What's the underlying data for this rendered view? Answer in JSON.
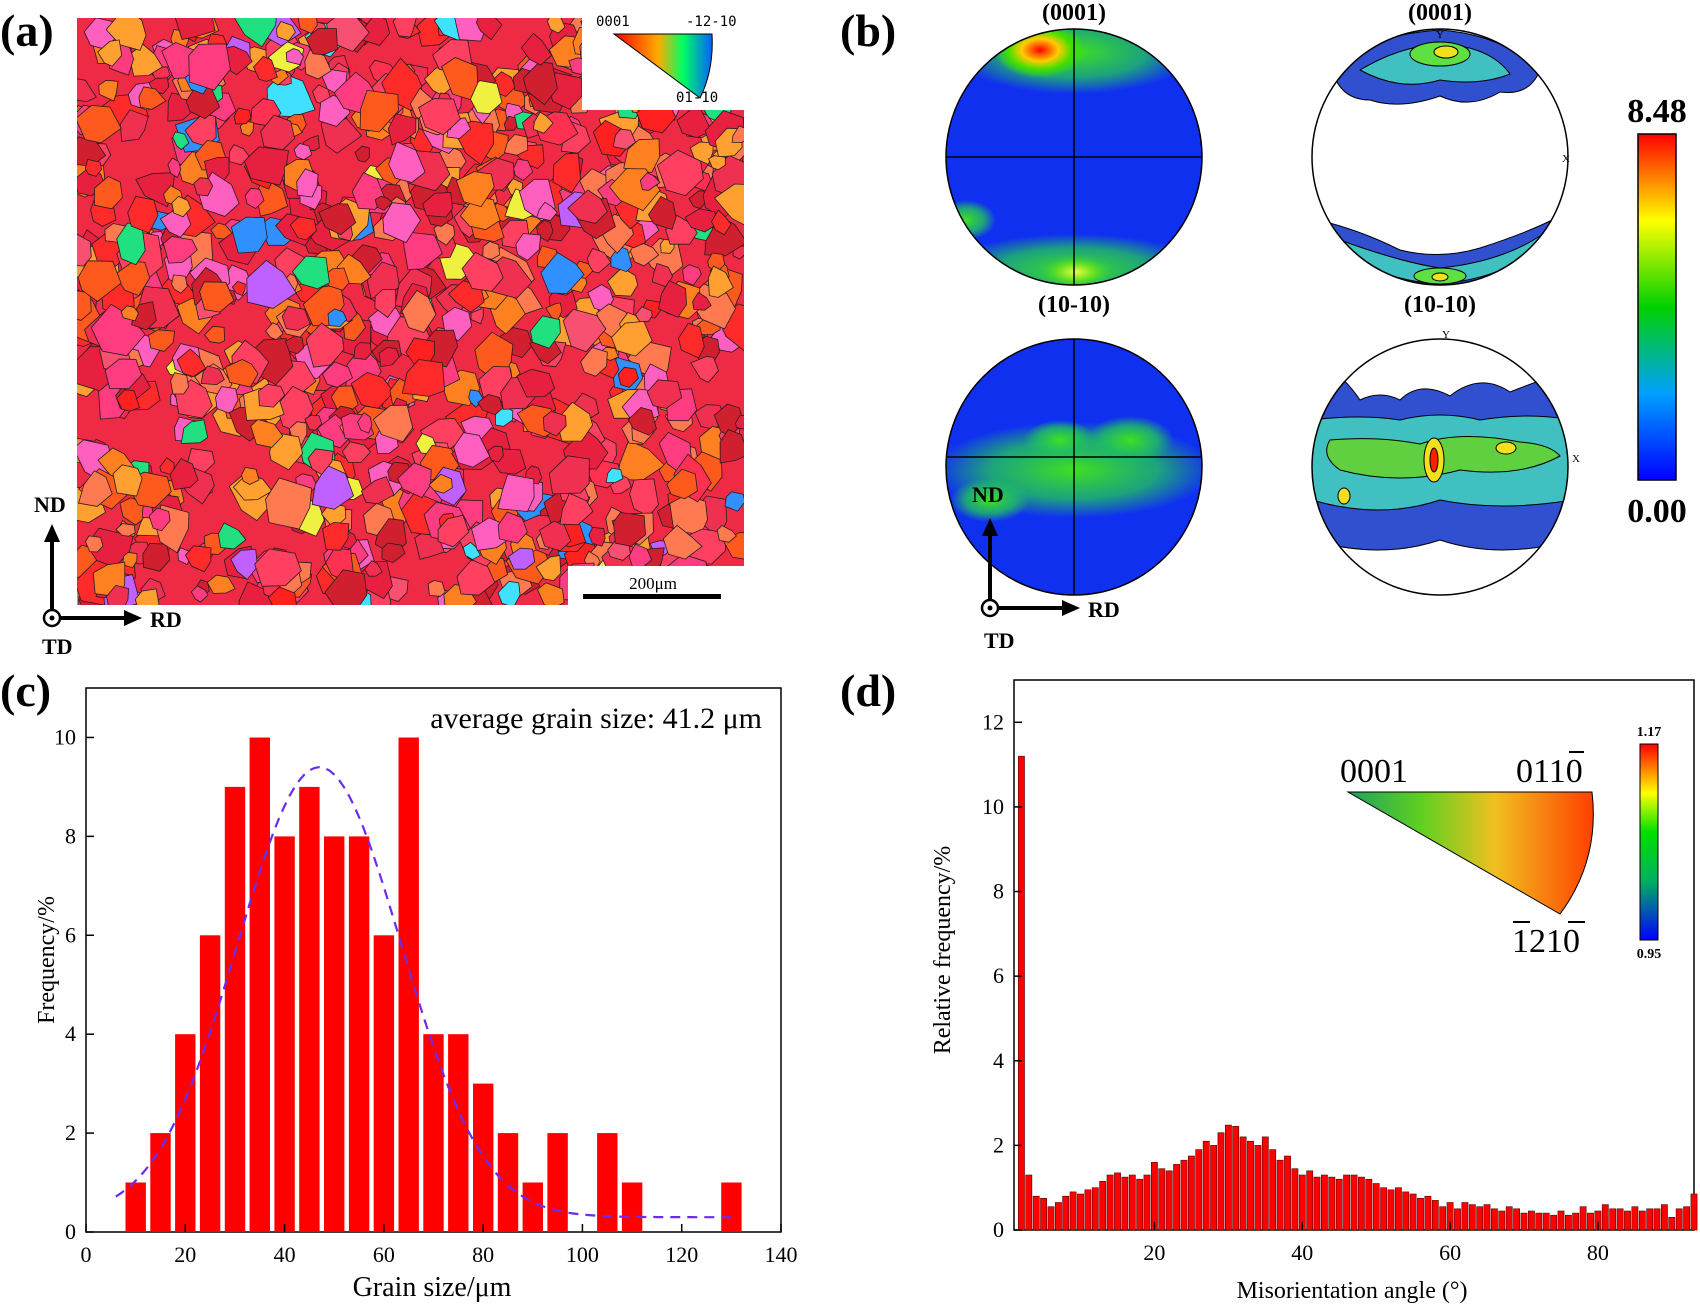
{
  "panels": {
    "a": {
      "label": "(a)",
      "ipf_key": {
        "corner_0001": "0001",
        "corner_m12m10": "-12-10",
        "corner_01m10": "01-10"
      },
      "scale_bar": "200μm",
      "axes": {
        "up": "ND",
        "right": "RD",
        "center": "TD"
      }
    },
    "b": {
      "label": "(b)",
      "pf_titles": [
        "(0001)",
        "(0001)",
        "(10-10)",
        "(10-10)"
      ],
      "pf_axis_labels": {
        "y": "Y",
        "x": "X"
      },
      "colorbar": {
        "max": "8.48",
        "min": "0.00"
      },
      "axes": {
        "up": "ND",
        "right": "RD",
        "center": "TD"
      }
    },
    "c": {
      "label": "(c)",
      "annotation": "average grain size: 41.2 μm"
    },
    "d": {
      "label": "(d)",
      "inset": {
        "c1": "0001",
        "c2": "01",
        "c2b": "1",
        "c2c": "0",
        "c3a": "1",
        "c3b": "21",
        "c3c": "0",
        "cb_max": "1.17",
        "cb_min": "0.95"
      }
    }
  },
  "chart_data": [
    {
      "type": "bar",
      "panel": "c",
      "xlabel": "Grain size/μm",
      "ylabel": "Frequency/%",
      "xlim": [
        0,
        140
      ],
      "ylim": [
        0,
        11
      ],
      "xticks": [
        0,
        20,
        40,
        60,
        80,
        100,
        120,
        140
      ],
      "yticks": [
        0,
        2,
        4,
        6,
        8,
        10
      ],
      "bin_width": 5,
      "x": [
        10,
        15,
        20,
        25,
        30,
        35,
        40,
        45,
        50,
        55,
        60,
        65,
        70,
        75,
        80,
        85,
        90,
        95,
        100,
        105,
        110,
        115,
        120,
        125,
        130
      ],
      "values": [
        1,
        2,
        4,
        6,
        9,
        10,
        8,
        9,
        8,
        8,
        6,
        10,
        4,
        4,
        3,
        2,
        1,
        2,
        0,
        2,
        1,
        0,
        0,
        0,
        1
      ],
      "fit_curve": {
        "style": "dashed",
        "color": "#6a2cf0",
        "mean": 47,
        "sigma": 16.5,
        "peak": 9.4,
        "baseline": 0.3,
        "x_range": [
          6,
          130
        ]
      },
      "bar_color": "#ff0000"
    },
    {
      "type": "bar",
      "panel": "d",
      "xlabel": "Misorientation angle (°)",
      "ylabel": "Relative frequency/%",
      "xlim": [
        1,
        93
      ],
      "ylim": [
        0,
        13
      ],
      "xticks": [
        20,
        40,
        60,
        80
      ],
      "yticks": [
        0,
        2,
        4,
        6,
        8,
        10,
        12
      ],
      "x_start": 2,
      "bin_width": 1,
      "values": [
        11.2,
        1.3,
        0.8,
        0.75,
        0.55,
        0.65,
        0.8,
        0.9,
        0.85,
        0.95,
        1.0,
        1.15,
        1.3,
        1.35,
        1.25,
        1.3,
        1.2,
        1.3,
        1.6,
        1.45,
        1.4,
        1.55,
        1.65,
        1.75,
        1.9,
        2.1,
        2.0,
        2.3,
        2.48,
        2.45,
        2.2,
        2.1,
        2.0,
        2.2,
        1.9,
        1.65,
        1.75,
        1.45,
        1.3,
        1.4,
        1.25,
        1.3,
        1.25,
        1.2,
        1.3,
        1.3,
        1.25,
        1.2,
        1.1,
        1.0,
        0.95,
        1.0,
        0.9,
        0.85,
        0.75,
        0.8,
        0.7,
        0.55,
        0.65,
        0.5,
        0.65,
        0.6,
        0.55,
        0.6,
        0.5,
        0.45,
        0.55,
        0.5,
        0.4,
        0.45,
        0.4,
        0.4,
        0.35,
        0.45,
        0.35,
        0.4,
        0.55,
        0.4,
        0.45,
        0.6,
        0.5,
        0.5,
        0.45,
        0.55,
        0.45,
        0.5,
        0.5,
        0.6,
        0.3,
        0.5,
        0.55,
        0.85
      ],
      "bar_color": "#ff0000"
    }
  ]
}
